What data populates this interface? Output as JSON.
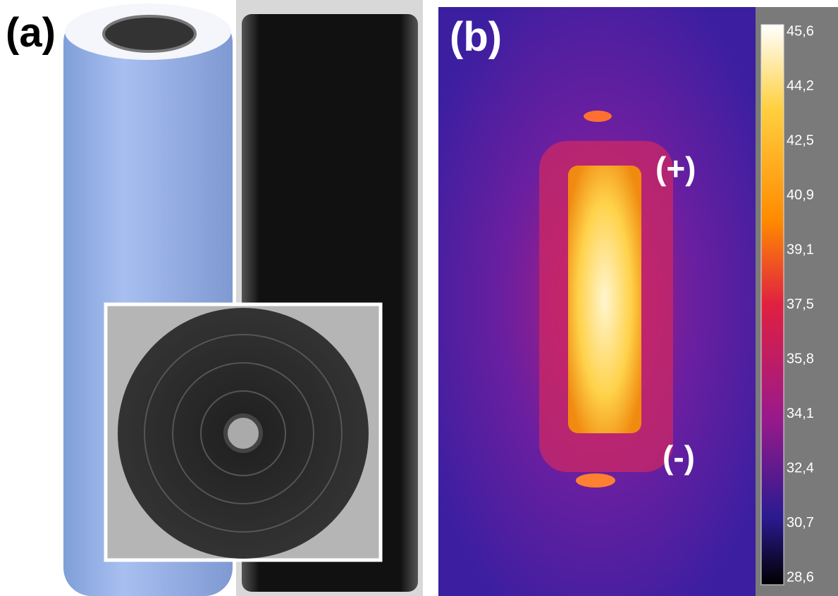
{
  "panel_a": {
    "label": "(a)"
  },
  "panel_b": {
    "label": "(b)",
    "positive": "(+)",
    "negative": "(-)"
  },
  "colorbar": {
    "labels": [
      "45,6",
      "44,2",
      "42,5",
      "40,9",
      "39,1",
      "37,5",
      "35,8",
      "34,1",
      "32,4",
      "30,7",
      "28,6"
    ]
  }
}
